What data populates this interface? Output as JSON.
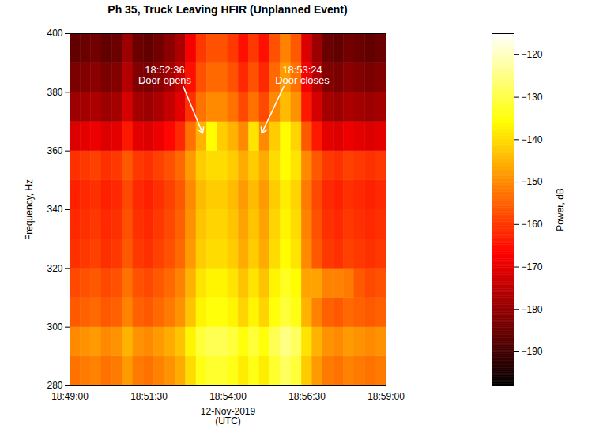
{
  "chart_data": {
    "type": "heatmap",
    "title": "Ph 35, Truck Leaving HFIR (Unplanned Event)",
    "xlabel": "12-Nov-2019\n(UTC)",
    "ylabel": "Frequency, Hz",
    "xlim": [
      "18:49:00",
      "18:59:00"
    ],
    "xticks": [
      "18:49:00",
      "18:51:30",
      "18:54:00",
      "18:56:30",
      "18:59:00"
    ],
    "ylim": [
      280,
      400
    ],
    "yticks": [
      280,
      300,
      320,
      340,
      360,
      380,
      400
    ],
    "color": "hot",
    "time_bins": [
      "18:49:00",
      "18:49:20",
      "18:49:40",
      "18:50:00",
      "18:50:20",
      "18:50:40",
      "18:51:00",
      "18:51:20",
      "18:51:40",
      "18:52:00",
      "18:52:20",
      "18:52:40",
      "18:53:00",
      "18:53:20",
      "18:53:40",
      "18:54:00",
      "18:54:20",
      "18:54:40",
      "18:55:00",
      "18:55:20",
      "18:55:40",
      "18:56:00",
      "18:56:20",
      "18:56:40",
      "18:57:00",
      "18:57:20",
      "18:57:40",
      "18:58:00",
      "18:58:20",
      "18:58:40",
      "18:59:00"
    ],
    "frequency_bins": [
      280,
      290,
      300,
      310,
      320,
      330,
      340,
      350,
      360,
      370,
      380,
      390,
      400
    ],
    "values": [
      [
        -153,
        -152,
        -151,
        -153,
        -152,
        -148,
        -152,
        -153,
        -151,
        -149,
        -146,
        -140,
        -134,
        -132,
        -132,
        -134,
        -138,
        -134,
        -138,
        -132,
        -128,
        -131,
        -142,
        -148,
        -152,
        -153,
        -151,
        -152,
        -153,
        -152
      ],
      [
        -150,
        -149,
        -148,
        -150,
        -149,
        -145,
        -149,
        -150,
        -148,
        -146,
        -143,
        -137,
        -131,
        -129,
        -129,
        -131,
        -135,
        -131,
        -135,
        -129,
        -125,
        -128,
        -139,
        -145,
        -149,
        -150,
        -148,
        -149,
        -150,
        -149
      ],
      [
        -156,
        -155,
        -154,
        -156,
        -155,
        -151,
        -155,
        -156,
        -154,
        -152,
        -149,
        -143,
        -137,
        -135,
        -135,
        -137,
        -141,
        -137,
        -141,
        -135,
        -131,
        -134,
        -145,
        -151,
        -155,
        -156,
        -154,
        -155,
        -156,
        -155
      ],
      [
        -158,
        -157,
        -156,
        -158,
        -157,
        -153,
        -157,
        -158,
        -156,
        -154,
        -151,
        -145,
        -139,
        -137,
        -137,
        -139,
        -143,
        -139,
        -143,
        -137,
        -133,
        -136,
        -147,
        -147,
        -151,
        -151,
        -152,
        -156,
        -158,
        -157
      ],
      [
        -161,
        -160,
        -159,
        -161,
        -160,
        -156,
        -160,
        -161,
        -159,
        -157,
        -154,
        -148,
        -142,
        -140,
        -140,
        -142,
        -146,
        -142,
        -146,
        -140,
        -136,
        -139,
        -150,
        -156,
        -160,
        -161,
        -159,
        -160,
        -161,
        -160
      ],
      [
        -162,
        -161,
        -160,
        -162,
        -161,
        -157,
        -161,
        -162,
        -160,
        -158,
        -155,
        -149,
        -143,
        -141,
        -141,
        -143,
        -147,
        -143,
        -147,
        -141,
        -137,
        -140,
        -151,
        -157,
        -161,
        -162,
        -160,
        -161,
        -162,
        -161
      ],
      [
        -163,
        -162,
        -161,
        -163,
        -162,
        -158,
        -162,
        -163,
        -161,
        -159,
        -156,
        -150,
        -144,
        -142,
        -142,
        -144,
        -148,
        -144,
        -148,
        -142,
        -138,
        -141,
        -152,
        -158,
        -162,
        -163,
        -161,
        -162,
        -163,
        -162
      ],
      [
        -161,
        -160,
        -159,
        -161,
        -160,
        -156,
        -160,
        -161,
        -159,
        -157,
        -154,
        -148,
        -142,
        -140,
        -140,
        -142,
        -146,
        -142,
        -146,
        -140,
        -136,
        -139,
        -150,
        -156,
        -160,
        -161,
        -159,
        -160,
        -161,
        -160
      ],
      [
        -171,
        -170,
        -169,
        -171,
        -170,
        -164,
        -170,
        -171,
        -169,
        -166,
        -162,
        -153,
        -145,
        -136,
        -142,
        -145,
        -150,
        -139,
        -150,
        -142,
        -136,
        -141,
        -156,
        -164,
        -170,
        -171,
        -169,
        -170,
        -171,
        -170
      ],
      [
        -179,
        -178,
        -177,
        -179,
        -178,
        -172,
        -178,
        -179,
        -177,
        -174,
        -170,
        -161,
        -153,
        -150,
        -150,
        -153,
        -158,
        -153,
        -158,
        -150,
        -144,
        -149,
        -164,
        -172,
        -178,
        -179,
        -177,
        -178,
        -179,
        -178
      ],
      [
        -183,
        -182,
        -181,
        -183,
        -182,
        -176,
        -182,
        -183,
        -181,
        -178,
        -174,
        -165,
        -157,
        -154,
        -154,
        -157,
        -162,
        -157,
        -162,
        -154,
        -148,
        -153,
        -168,
        -176,
        -182,
        -183,
        -181,
        -182,
        -183,
        -182
      ],
      [
        -186,
        -185,
        -184,
        -186,
        -185,
        -179,
        -185,
        -186,
        -184,
        -181,
        -177,
        -168,
        -160,
        -157,
        -157,
        -160,
        -165,
        -160,
        -165,
        -157,
        -151,
        -156,
        -171,
        -179,
        -185,
        -186,
        -184,
        -185,
        -186,
        -185
      ]
    ],
    "colorbar": {
      "label": "Power, dB",
      "range": [
        -198,
        -115
      ],
      "ticks": [
        -190,
        -180,
        -170,
        -160,
        -150,
        -140,
        -130,
        -120
      ]
    },
    "annotations": [
      {
        "text": "18:52:36\nDoor opens",
        "x": "18:53:20",
        "y": 360
      },
      {
        "text": "18:53:24\nDoor closes",
        "x": "18:54:56",
        "y": 360
      }
    ]
  }
}
